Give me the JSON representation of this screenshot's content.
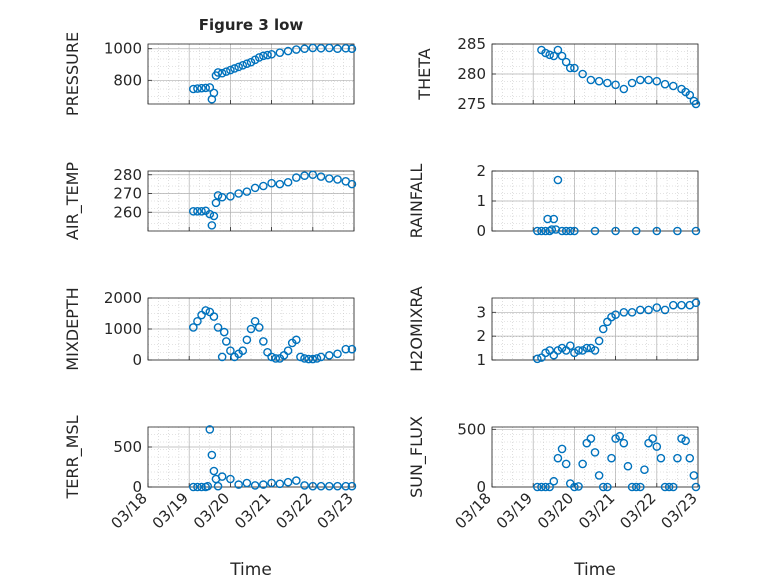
{
  "title": "Figure 3 low",
  "xlabel": "Time",
  "x_ticks": [
    "03/18",
    "03/19",
    "03/20",
    "03/21",
    "03/22",
    "03/23"
  ],
  "series_color": "#0072BD",
  "chart_data": [
    {
      "type": "scatter",
      "ylabel": "PRESSURE",
      "ylim": [
        650,
        1030
      ],
      "yticks": [
        800,
        1000
      ],
      "x": [
        1.1,
        1.2,
        1.3,
        1.4,
        1.5,
        1.55,
        1.6,
        1.65,
        1.7,
        1.8,
        1.9,
        2.0,
        2.1,
        2.2,
        2.3,
        2.4,
        2.5,
        2.6,
        2.7,
        2.8,
        2.9,
        3.0,
        3.2,
        3.4,
        3.6,
        3.8,
        4.0,
        4.2,
        4.4,
        4.6,
        4.8,
        4.95
      ],
      "y": [
        745,
        748,
        750,
        752,
        755,
        680,
        720,
        830,
        850,
        845,
        855,
        865,
        875,
        885,
        895,
        905,
        915,
        930,
        945,
        955,
        960,
        965,
        975,
        985,
        995,
        1000,
        1005,
        1003,
        1005,
        1000,
        1003,
        1000
      ]
    },
    {
      "type": "scatter",
      "ylabel": "THETA",
      "ylim": [
        275,
        285
      ],
      "yticks": [
        275,
        280,
        285
      ],
      "x": [
        1.2,
        1.3,
        1.4,
        1.5,
        1.6,
        1.7,
        1.8,
        1.9,
        2.0,
        2.2,
        2.4,
        2.6,
        2.8,
        3.0,
        3.2,
        3.4,
        3.6,
        3.8,
        4.0,
        4.2,
        4.4,
        4.6,
        4.7,
        4.8,
        4.9,
        4.95
      ],
      "y": [
        284,
        283.5,
        283.2,
        283,
        284,
        283,
        282,
        281,
        281,
        280,
        279,
        278.8,
        278.5,
        278.2,
        277.5,
        278.5,
        279,
        279,
        278.8,
        278.3,
        278,
        277.5,
        277,
        276.5,
        275.5,
        275
      ]
    },
    {
      "type": "scatter",
      "ylabel": "AIR_TEMP",
      "ylim": [
        250,
        282
      ],
      "yticks": [
        260,
        270,
        280
      ],
      "x": [
        1.1,
        1.2,
        1.3,
        1.4,
        1.5,
        1.55,
        1.6,
        1.65,
        1.7,
        1.8,
        2.0,
        2.2,
        2.4,
        2.6,
        2.8,
        3.0,
        3.2,
        3.4,
        3.6,
        3.8,
        4.0,
        4.2,
        4.4,
        4.6,
        4.8,
        4.95
      ],
      "y": [
        260.5,
        260.5,
        260.5,
        260.8,
        259,
        253,
        258,
        265,
        269,
        268,
        268.5,
        270,
        271,
        273,
        274,
        275.5,
        275,
        276,
        278.5,
        279.5,
        280,
        279,
        278,
        277.5,
        276.5,
        275
      ]
    },
    {
      "type": "scatter",
      "ylabel": "RAINFALL",
      "ylim": [
        0,
        2
      ],
      "yticks": [
        0,
        1,
        2
      ],
      "x": [
        1.1,
        1.2,
        1.3,
        1.35,
        1.4,
        1.45,
        1.5,
        1.55,
        1.6,
        1.7,
        1.8,
        1.9,
        2.0,
        2.5,
        3.0,
        3.5,
        4.0,
        4.5,
        4.95
      ],
      "y": [
        0,
        0,
        0,
        0.4,
        0,
        0.05,
        0.4,
        0.05,
        1.7,
        0,
        0,
        0,
        0,
        0,
        0,
        0,
        0,
        0,
        0
      ]
    },
    {
      "type": "scatter",
      "ylabel": "MIXDEPTH",
      "ylim": [
        0,
        2000
      ],
      "yticks": [
        0,
        1000,
        2000
      ],
      "x": [
        1.1,
        1.2,
        1.3,
        1.4,
        1.5,
        1.6,
        1.7,
        1.8,
        1.85,
        1.9,
        2.0,
        2.1,
        2.2,
        2.3,
        2.4,
        2.5,
        2.6,
        2.7,
        2.8,
        2.9,
        3.0,
        3.1,
        3.2,
        3.3,
        3.4,
        3.5,
        3.6,
        3.7,
        3.8,
        3.9,
        4.0,
        4.1,
        4.2,
        4.4,
        4.6,
        4.8,
        4.95
      ],
      "y": [
        1050,
        1250,
        1450,
        1600,
        1550,
        1400,
        1050,
        100,
        900,
        600,
        300,
        100,
        200,
        300,
        650,
        1000,
        1250,
        1050,
        600,
        250,
        100,
        50,
        50,
        150,
        300,
        550,
        650,
        100,
        50,
        30,
        30,
        50,
        100,
        150,
        200,
        350,
        350
      ]
    },
    {
      "type": "scatter",
      "ylabel": "H2OMIXRA",
      "ylim": [
        1,
        3.6
      ],
      "yticks": [
        1,
        2,
        3
      ],
      "x": [
        1.1,
        1.2,
        1.3,
        1.4,
        1.5,
        1.6,
        1.7,
        1.8,
        1.9,
        2.0,
        2.1,
        2.2,
        2.3,
        2.4,
        2.5,
        2.6,
        2.7,
        2.8,
        2.9,
        3.0,
        3.2,
        3.4,
        3.6,
        3.8,
        4.0,
        4.2,
        4.4,
        4.6,
        4.8,
        4.95
      ],
      "y": [
        1.05,
        1.1,
        1.3,
        1.4,
        1.2,
        1.4,
        1.5,
        1.4,
        1.6,
        1.3,
        1.4,
        1.4,
        1.5,
        1.5,
        1.4,
        1.8,
        2.3,
        2.6,
        2.8,
        2.9,
        3.0,
        3.0,
        3.1,
        3.1,
        3.2,
        3.1,
        3.3,
        3.3,
        3.3,
        3.4
      ]
    },
    {
      "type": "scatter",
      "ylabel": "TERR_MSL",
      "ylim": [
        0,
        750
      ],
      "yticks": [
        0,
        500
      ],
      "x": [
        1.1,
        1.2,
        1.3,
        1.4,
        1.45,
        1.5,
        1.55,
        1.6,
        1.65,
        1.7,
        1.8,
        2.0,
        2.2,
        2.4,
        2.6,
        2.8,
        3.0,
        3.2,
        3.4,
        3.6,
        3.8,
        4.0,
        4.2,
        4.4,
        4.6,
        4.8,
        4.95
      ],
      "y": [
        0,
        0,
        0,
        0,
        10,
        720,
        400,
        200,
        100,
        10,
        130,
        100,
        30,
        50,
        20,
        30,
        50,
        40,
        60,
        80,
        20,
        10,
        10,
        10,
        10,
        10,
        10
      ]
    },
    {
      "type": "scatter",
      "ylabel": "SUN_FLUX",
      "ylim": [
        0,
        520
      ],
      "yticks": [
        0,
        500
      ],
      "x": [
        1.1,
        1.2,
        1.3,
        1.4,
        1.5,
        1.6,
        1.7,
        1.8,
        1.9,
        2.0,
        2.1,
        2.2,
        2.3,
        2.4,
        2.5,
        2.6,
        2.7,
        2.8,
        2.9,
        3.0,
        3.1,
        3.2,
        3.3,
        3.4,
        3.5,
        3.6,
        3.7,
        3.8,
        3.9,
        4.0,
        4.1,
        4.2,
        4.3,
        4.4,
        4.5,
        4.6,
        4.7,
        4.8,
        4.9,
        4.95
      ],
      "y": [
        0,
        0,
        0,
        0,
        50,
        250,
        330,
        200,
        30,
        0,
        5,
        200,
        380,
        420,
        300,
        100,
        0,
        0,
        250,
        420,
        440,
        380,
        180,
        0,
        0,
        0,
        150,
        380,
        420,
        350,
        250,
        0,
        0,
        0,
        250,
        420,
        400,
        250,
        100,
        0
      ]
    }
  ]
}
